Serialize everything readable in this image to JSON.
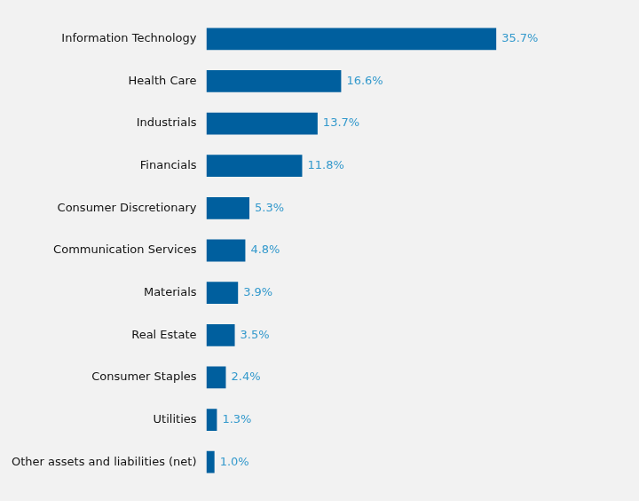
{
  "chart_data": {
    "type": "bar",
    "orientation": "horizontal",
    "categories": [
      "Information Technology",
      "Health Care",
      "Industrials",
      "Financials",
      "Consumer Discretionary",
      "Communication Services",
      "Materials",
      "Real Estate",
      "Consumer Staples",
      "Utilities",
      "Other assets and liabilities (net)"
    ],
    "values": [
      35.7,
      16.6,
      13.7,
      11.8,
      5.3,
      4.8,
      3.9,
      3.5,
      2.4,
      1.3,
      1.0
    ],
    "value_labels": [
      "35.7%",
      "16.6%",
      "13.7%",
      "11.8%",
      "5.3%",
      "4.8%",
      "3.9%",
      "3.5%",
      "2.4%",
      "1.3%",
      "1.0%"
    ],
    "color": "#005F9E",
    "xlim": [
      0,
      50
    ],
    "grid": false,
    "data_labels": true,
    "tick_labels": "y"
  }
}
